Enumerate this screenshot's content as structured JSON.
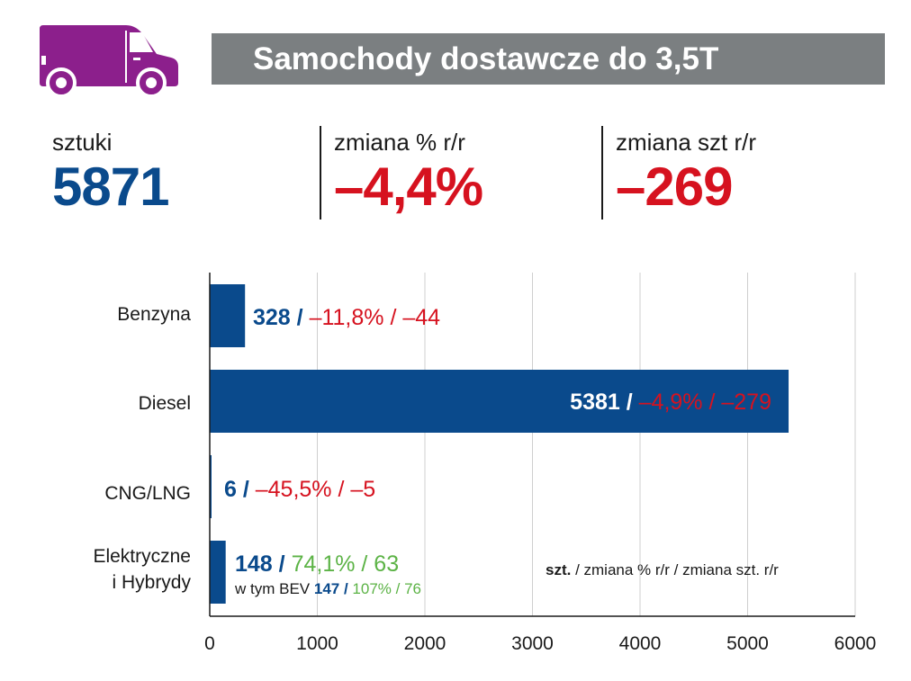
{
  "header": {
    "title": "Samochody dostawcze do 3,5T",
    "icon": "van-icon",
    "icon_color": "#8c1f8c"
  },
  "stats": [
    {
      "label": "sztuki",
      "value": "5871",
      "color": "#0a4a8c"
    },
    {
      "label": "zmiana % r/r",
      "value": "–4,4%",
      "color": "#d6121f"
    },
    {
      "label": "zmiana szt r/r",
      "value": "–269",
      "color": "#d6121f"
    }
  ],
  "chart_data": {
    "type": "bar",
    "orientation": "horizontal",
    "categories": [
      "Benzyna",
      "Diesel",
      "CNG/LNG",
      "Elektryczne i Hybrydy"
    ],
    "category_lines": [
      [
        "Benzyna"
      ],
      [
        "Diesel"
      ],
      [
        "CNG/LNG"
      ],
      [
        "Elektryczne",
        "i Hybrydy"
      ]
    ],
    "values": [
      328,
      5381,
      6,
      148
    ],
    "pct_change": [
      "–11,8%",
      "–4,9%",
      "–45,5%",
      "74,1%"
    ],
    "abs_change": [
      "–44",
      "–279",
      "–5",
      "63"
    ],
    "value_labels": [
      "328",
      "5381",
      "6",
      "148"
    ],
    "change_colors": [
      "#d6121f",
      "#d6121f",
      "#d6121f",
      "#5cb346"
    ],
    "sub_note": {
      "prefix": "w tym BEV",
      "value": "147",
      "pct": "107%",
      "abs": "76"
    },
    "xlim": [
      0,
      6000
    ],
    "xticks": [
      "0",
      "1000",
      "2000",
      "3000",
      "4000",
      "5000",
      "6000"
    ],
    "grid": true,
    "legend_note": {
      "bold": "szt.",
      "rest": " / zmiana % r/r / zmiana szt. r/r"
    },
    "bar_color": "#0a4a8c"
  }
}
